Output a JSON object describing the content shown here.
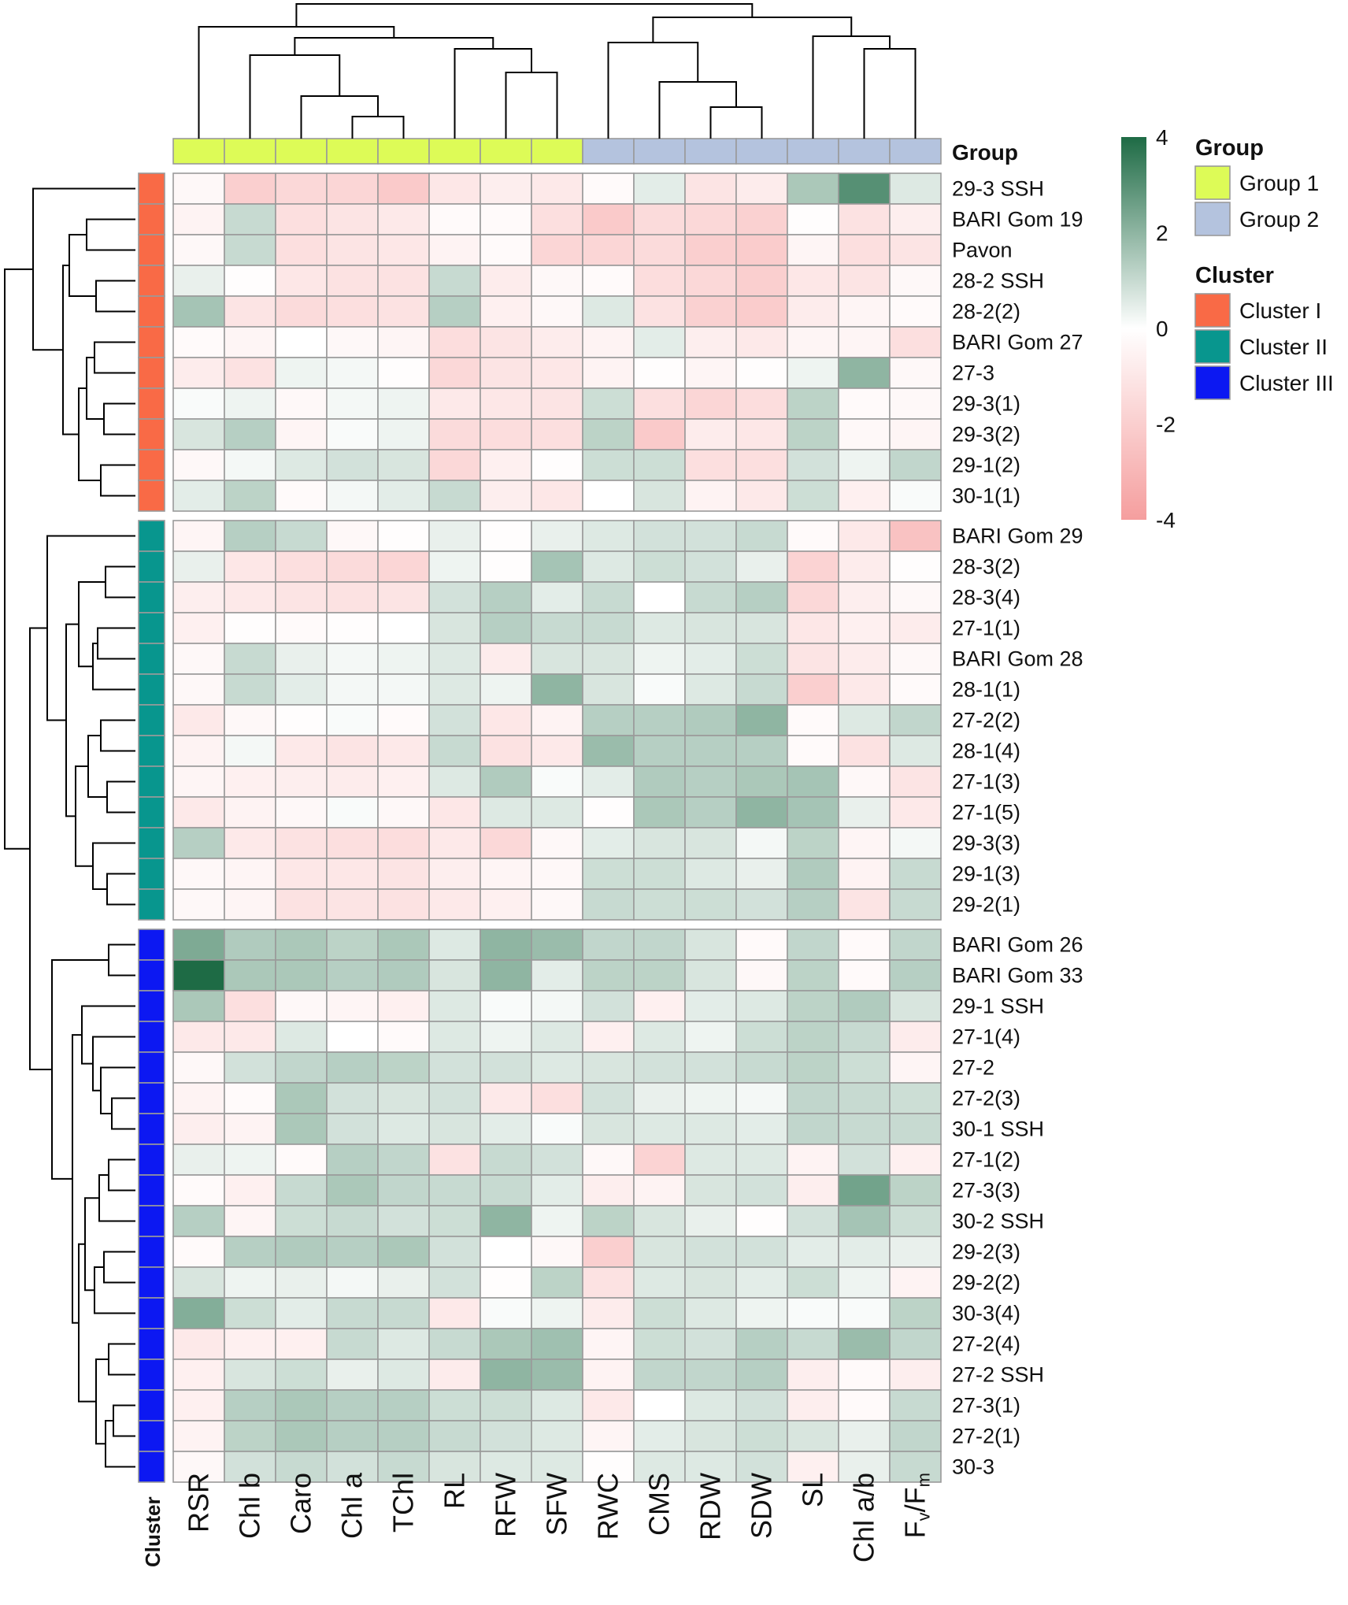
{
  "chart_data": {
    "type": "heatmap",
    "title": "",
    "columns": [
      "RSR",
      "Chl b",
      "Caro",
      "Chl a",
      "TChl",
      "RL",
      "RFW",
      "SFW",
      "RWC",
      "CMS",
      "RDW",
      "SDW",
      "SL",
      "Chl a/b",
      "Fv/Fm"
    ],
    "column_group": [
      "Group 1",
      "Group 1",
      "Group 1",
      "Group 1",
      "Group 1",
      "Group 1",
      "Group 1",
      "Group 1",
      "Group 2",
      "Group 2",
      "Group 2",
      "Group 2",
      "Group 2",
      "Group 2",
      "Group 2"
    ],
    "rows": [
      "29-3 SSH",
      "BARI Gom 19",
      "Pavon",
      "28-2 SSH",
      "28-2(2)",
      "BARI Gom 27",
      "27-3",
      "29-3(1)",
      "29-3(2)",
      "29-1(2)",
      "30-1(1)",
      "BARI Gom 29",
      "28-3(2)",
      "28-3(4)",
      "27-1(1)",
      "BARI Gom 28",
      "28-1(1)",
      "27-2(2)",
      "28-1(4)",
      "27-1(3)",
      "27-1(5)",
      "29-3(3)",
      "29-1(3)",
      "29-2(1)",
      "BARI Gom 26",
      "BARI Gom 33",
      "29-1 SSH",
      "27-1(4)",
      "27-2",
      "27-2(3)",
      "30-1 SSH",
      "27-1(2)",
      "27-3(3)",
      "30-2 SSH",
      "29-2(3)",
      "29-2(2)",
      "30-3(4)",
      "27-2(4)",
      "27-2 SSH",
      "27-3(1)",
      "27-2(1)",
      "30-3"
    ],
    "row_cluster": [
      "Cluster I",
      "Cluster I",
      "Cluster I",
      "Cluster I",
      "Cluster I",
      "Cluster I",
      "Cluster I",
      "Cluster I",
      "Cluster I",
      "Cluster I",
      "Cluster I",
      "Cluster II",
      "Cluster II",
      "Cluster II",
      "Cluster II",
      "Cluster II",
      "Cluster II",
      "Cluster II",
      "Cluster II",
      "Cluster II",
      "Cluster II",
      "Cluster II",
      "Cluster II",
      "Cluster II",
      "Cluster III",
      "Cluster III",
      "Cluster III",
      "Cluster III",
      "Cluster III",
      "Cluster III",
      "Cluster III",
      "Cluster III",
      "Cluster III",
      "Cluster III",
      "Cluster III",
      "Cluster III",
      "Cluster III",
      "Cluster III",
      "Cluster III",
      "Cluster III",
      "Cluster III",
      "Cluster III"
    ],
    "values": [
      [
        -0.3,
        -2.0,
        -1.6,
        -1.7,
        -2.2,
        -1.0,
        -0.7,
        -0.9,
        -0.2,
        0.5,
        -1.1,
        -0.8,
        1.5,
        3.0,
        0.6
      ],
      [
        -0.5,
        1.0,
        -1.3,
        -1.1,
        -0.9,
        -0.2,
        -0.2,
        -1.3,
        -2.2,
        -1.5,
        -1.6,
        -1.9,
        -0.1,
        -1.2,
        -0.7
      ],
      [
        -0.3,
        1.0,
        -1.3,
        -1.1,
        -1.0,
        -0.5,
        -0.2,
        -1.7,
        -1.7,
        -1.5,
        -2.0,
        -2.1,
        -0.4,
        -1.3,
        -1.1
      ],
      [
        0.4,
        -0.1,
        -1.0,
        -1.2,
        -1.2,
        1.0,
        -0.8,
        -0.3,
        -0.2,
        -1.4,
        -1.6,
        -2.0,
        -1.0,
        -1.1,
        -0.3
      ],
      [
        1.6,
        -1.1,
        -1.5,
        -1.3,
        -1.2,
        1.3,
        -0.6,
        -0.3,
        0.6,
        -1.2,
        -1.9,
        -2.1,
        -0.8,
        -0.4,
        -0.2
      ],
      [
        -0.2,
        -0.4,
        0.0,
        -0.3,
        -0.4,
        -1.4,
        -1.1,
        -0.8,
        -0.5,
        0.5,
        -0.7,
        -0.9,
        -0.4,
        -0.4,
        -1.3
      ],
      [
        -0.8,
        -1.2,
        0.3,
        0.2,
        -0.1,
        -1.6,
        -1.1,
        -1.0,
        -0.5,
        -0.1,
        -0.4,
        -0.1,
        0.3,
        2.0,
        -0.3
      ],
      [
        0.1,
        0.3,
        -0.3,
        0.2,
        0.3,
        -0.9,
        -1.0,
        -1.1,
        0.9,
        -1.3,
        -1.7,
        -1.4,
        1.2,
        -0.2,
        -0.3
      ],
      [
        0.7,
        1.3,
        -0.4,
        0.1,
        0.3,
        -1.5,
        -1.4,
        -1.3,
        1.2,
        -2.2,
        -0.8,
        -1.0,
        1.2,
        -0.3,
        -0.4
      ],
      [
        -0.3,
        0.2,
        0.6,
        0.8,
        0.7,
        -1.6,
        -0.6,
        -0.1,
        0.9,
        0.9,
        -1.3,
        -1.3,
        0.8,
        0.3,
        1.1
      ],
      [
        0.5,
        1.2,
        -0.2,
        0.2,
        0.5,
        1.0,
        -0.7,
        -1.0,
        0.0,
        0.7,
        -0.5,
        -0.9,
        0.9,
        -0.6,
        0.1
      ],
      [
        -0.4,
        1.3,
        1.0,
        -0.3,
        -0.1,
        0.4,
        -0.1,
        0.4,
        0.6,
        0.8,
        0.8,
        1.0,
        -0.2,
        -0.9,
        -2.5
      ],
      [
        0.4,
        -1.0,
        -1.3,
        -1.5,
        -1.7,
        0.3,
        -0.1,
        1.6,
        0.6,
        0.9,
        0.8,
        0.4,
        -1.8,
        -0.8,
        -0.1
      ],
      [
        -0.7,
        -0.9,
        -1.1,
        -1.2,
        -1.1,
        0.8,
        1.3,
        0.5,
        1.0,
        0.0,
        1.0,
        1.3,
        -1.6,
        -0.7,
        -0.3
      ],
      [
        -0.6,
        -0.1,
        -0.2,
        -0.1,
        0.0,
        0.7,
        1.3,
        1.0,
        1.0,
        0.6,
        0.7,
        0.7,
        -1.0,
        -0.6,
        -0.8
      ],
      [
        -0.3,
        1.0,
        0.4,
        0.2,
        0.3,
        0.6,
        -0.8,
        0.7,
        0.7,
        0.3,
        0.5,
        0.9,
        -1.1,
        -0.8,
        -0.3
      ],
      [
        -0.3,
        1.0,
        0.5,
        0.2,
        0.2,
        0.6,
        0.3,
        2.0,
        0.7,
        0.1,
        0.6,
        1.0,
        -2.0,
        -0.9,
        -0.2
      ],
      [
        -0.9,
        -0.3,
        -0.1,
        0.1,
        -0.2,
        0.8,
        -1.0,
        -0.5,
        1.3,
        1.3,
        1.4,
        2.0,
        -0.2,
        0.6,
        1.1
      ],
      [
        -0.5,
        0.2,
        -0.9,
        -1.1,
        -0.9,
        1.0,
        -1.2,
        -0.9,
        1.8,
        1.3,
        1.3,
        1.3,
        -0.2,
        -1.2,
        0.6
      ],
      [
        -0.4,
        -0.6,
        -0.7,
        -0.8,
        -0.6,
        0.6,
        1.4,
        0.1,
        0.5,
        1.4,
        1.3,
        1.5,
        1.6,
        -0.3,
        -1.1
      ],
      [
        -0.9,
        -0.5,
        -0.3,
        0.1,
        -0.3,
        -1.0,
        0.6,
        0.6,
        -0.1,
        1.5,
        1.3,
        2.0,
        1.6,
        0.4,
        -0.9
      ],
      [
        1.3,
        -0.9,
        -1.2,
        -1.3,
        -1.4,
        -0.9,
        -1.6,
        -0.3,
        0.5,
        0.7,
        0.7,
        0.2,
        1.2,
        -0.4,
        0.2
      ],
      [
        -0.3,
        -0.4,
        -1.0,
        -1.0,
        -1.1,
        -0.7,
        -0.4,
        -0.3,
        0.9,
        0.9,
        0.6,
        0.4,
        1.4,
        -0.5,
        1.0
      ],
      [
        -0.3,
        -0.4,
        -1.2,
        -1.1,
        -1.2,
        -0.9,
        -0.6,
        -0.3,
        1.0,
        0.9,
        0.9,
        0.8,
        1.3,
        -1.1,
        1.0
      ],
      [
        2.3,
        1.4,
        1.5,
        1.2,
        1.5,
        0.6,
        2.0,
        1.8,
        1.1,
        1.1,
        0.7,
        -0.2,
        1.1,
        -0.2,
        1.1
      ],
      [
        4.0,
        1.5,
        1.5,
        1.3,
        1.4,
        0.7,
        2.0,
        0.5,
        1.2,
        1.2,
        0.7,
        -0.3,
        1.2,
        -0.2,
        1.3
      ],
      [
        1.5,
        -1.3,
        -0.3,
        -0.4,
        -0.6,
        0.6,
        0.1,
        0.2,
        0.8,
        -0.6,
        0.5,
        0.6,
        1.2,
        1.4,
        0.7
      ],
      [
        -0.9,
        -0.9,
        0.6,
        0.0,
        -0.2,
        0.6,
        0.3,
        0.6,
        -0.6,
        0.6,
        0.3,
        0.9,
        1.2,
        1.0,
        -0.8
      ],
      [
        -0.3,
        0.8,
        1.1,
        1.3,
        1.2,
        0.8,
        0.8,
        0.6,
        0.7,
        0.8,
        0.8,
        1.0,
        1.2,
        0.9,
        -0.4
      ],
      [
        -0.5,
        -0.2,
        1.5,
        0.8,
        0.7,
        0.8,
        -0.9,
        -1.3,
        0.8,
        0.4,
        0.3,
        0.2,
        1.1,
        1.0,
        0.9
      ],
      [
        -0.7,
        -0.5,
        1.5,
        0.8,
        0.6,
        0.7,
        0.5,
        0.1,
        0.7,
        0.6,
        0.6,
        0.5,
        1.1,
        1.0,
        1.0
      ],
      [
        0.4,
        0.3,
        -0.2,
        1.3,
        1.1,
        -1.2,
        1.0,
        0.8,
        -0.3,
        -1.8,
        0.6,
        0.6,
        -0.5,
        0.8,
        -0.6
      ],
      [
        -0.2,
        -0.6,
        1.0,
        1.5,
        1.1,
        1.0,
        1.0,
        0.5,
        -0.7,
        -0.5,
        0.7,
        0.8,
        -0.7,
        2.5,
        1.2
      ],
      [
        1.3,
        -0.4,
        0.9,
        1.0,
        0.8,
        0.9,
        2.0,
        0.3,
        1.2,
        0.7,
        0.4,
        -0.1,
        0.8,
        1.6,
        0.9
      ],
      [
        -0.2,
        1.3,
        1.4,
        1.3,
        1.5,
        0.8,
        0.0,
        -0.3,
        -2.0,
        0.7,
        0.8,
        0.8,
        0.5,
        0.5,
        0.4
      ],
      [
        0.7,
        0.3,
        0.4,
        0.2,
        0.4,
        0.8,
        -0.1,
        1.2,
        -1.2,
        0.6,
        0.7,
        0.5,
        0.9,
        0.3,
        -0.5
      ],
      [
        2.2,
        0.9,
        0.5,
        1.0,
        1.0,
        -0.9,
        0.1,
        0.3,
        -0.8,
        0.9,
        0.6,
        0.3,
        0.1,
        0.1,
        1.2
      ],
      [
        -0.9,
        -0.6,
        -0.6,
        1.0,
        0.6,
        1.0,
        1.5,
        1.7,
        -0.4,
        0.9,
        0.8,
        1.3,
        1.0,
        1.8,
        1.1
      ],
      [
        -0.6,
        0.7,
        0.9,
        0.4,
        0.6,
        -0.8,
        2.0,
        1.8,
        -0.5,
        1.1,
        1.1,
        1.3,
        -0.7,
        -0.2,
        -0.7
      ],
      [
        -0.6,
        1.3,
        1.5,
        1.3,
        1.3,
        0.9,
        0.9,
        0.6,
        -0.9,
        0.0,
        0.6,
        0.8,
        -0.7,
        -0.2,
        1.0
      ],
      [
        -0.5,
        1.2,
        1.5,
        1.3,
        1.3,
        1.0,
        0.8,
        0.6,
        -0.4,
        0.5,
        0.7,
        0.9,
        0.7,
        0.4,
        1.1
      ],
      [
        -0.3,
        0.8,
        1.0,
        0.8,
        1.0,
        0.7,
        0.6,
        0.6,
        -0.1,
        0.6,
        0.6,
        0.8,
        -0.6,
        0.4,
        1.0
      ]
    ],
    "colorbar": {
      "ticks": [
        "4",
        "2",
        "0",
        "-2",
        "-4"
      ],
      "range": [
        -4,
        4
      ]
    },
    "legend": {
      "group_title": "Group",
      "group_entries": [
        "Group 1",
        "Group 2"
      ],
      "cluster_title": "Cluster",
      "cluster_entries": [
        "Cluster I",
        "Cluster II",
        "Cluster III"
      ]
    },
    "annotation_labels": {
      "column_annotation": "Group",
      "row_annotation": "Cluster"
    },
    "colors": {
      "low": "#F59E9E",
      "mid": "#FFFFFF",
      "high": "#1E6B45",
      "Group 1": "#DDFB57",
      "Group 2": "#B4C3DE",
      "Cluster I": "#F96A46",
      "Cluster II": "#08968E",
      "Cluster III": "#0C18F2"
    }
  }
}
